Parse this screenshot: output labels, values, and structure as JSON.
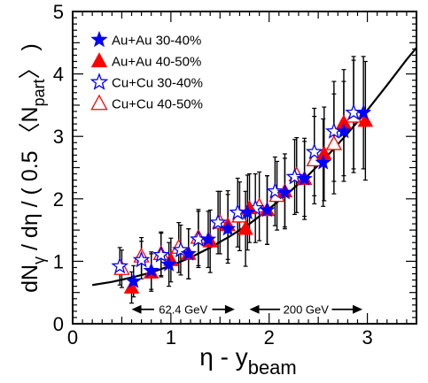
{
  "chart_data": {
    "type": "scatter",
    "xlabel": "η - y",
    "xlabel_sub": "beam",
    "ylabel": {
      "prefix": "dN",
      "gamma": "γ",
      "mid": " / dη / ( 0.5 〈N",
      "part": "part",
      "suffix": "〉 )"
    },
    "xlim": [
      0,
      3.5
    ],
    "ylim": [
      0,
      5
    ],
    "xticks": [
      "0",
      "1",
      "2",
      "3"
    ],
    "yticks": [
      "0",
      "1",
      "2",
      "3",
      "4",
      "5"
    ],
    "legend_position": "top-left",
    "series": [
      {
        "name": "Au+Au 30-40%",
        "marker": "star",
        "filled": true,
        "color": "#0000ff",
        "points": [
          {
            "x": 0.62,
            "y": 0.68,
            "err": 0.25
          },
          {
            "x": 0.8,
            "y": 0.85,
            "err": 0.3
          },
          {
            "x": 0.98,
            "y": 0.95,
            "err": 0.35
          },
          {
            "x": 1.18,
            "y": 1.12,
            "err": 0.4
          },
          {
            "x": 1.38,
            "y": 1.35,
            "err": 0.45
          },
          {
            "x": 1.58,
            "y": 1.52,
            "err": 0.55
          },
          {
            "x": 1.78,
            "y": 1.78,
            "err": 0.6
          },
          {
            "x": 1.98,
            "y": 1.82,
            "err": 0.55
          },
          {
            "x": 2.16,
            "y": 2.1,
            "err": 0.55
          },
          {
            "x": 2.36,
            "y": 2.32,
            "err": 0.6
          },
          {
            "x": 2.55,
            "y": 2.58,
            "err": 0.7
          },
          {
            "x": 2.76,
            "y": 3.08,
            "err": 0.8
          },
          {
            "x": 2.96,
            "y": 3.38,
            "err": 0.9
          }
        ]
      },
      {
        "name": "Au+Au 40-50%",
        "marker": "triangle",
        "filled": true,
        "color": "#ff0000",
        "points": [
          {
            "x": 0.6,
            "y": 0.58,
            "err": 0.25
          },
          {
            "x": 0.8,
            "y": 0.82,
            "err": 0.3
          },
          {
            "x": 1.0,
            "y": 1.02,
            "err": 0.35
          },
          {
            "x": 1.18,
            "y": 1.12,
            "err": 0.4
          },
          {
            "x": 1.4,
            "y": 1.32,
            "err": 0.5
          },
          {
            "x": 1.58,
            "y": 1.58,
            "err": 0.55
          },
          {
            "x": 1.76,
            "y": 1.52,
            "err": 0.6
          },
          {
            "x": 1.8,
            "y": 1.85,
            "err": 0.55
          },
          {
            "x": 1.98,
            "y": 1.82,
            "err": 0.55
          },
          {
            "x": 2.16,
            "y": 2.12,
            "err": 0.6
          },
          {
            "x": 2.36,
            "y": 2.32,
            "err": 0.65
          },
          {
            "x": 2.56,
            "y": 2.72,
            "err": 0.75
          },
          {
            "x": 2.76,
            "y": 3.22,
            "err": 0.85
          },
          {
            "x": 2.98,
            "y": 3.25,
            "err": 0.95
          }
        ]
      },
      {
        "name": "Cu+Cu 30-40%",
        "marker": "star",
        "filled": false,
        "color": "#0000ff",
        "points": [
          {
            "x": 0.48,
            "y": 0.92,
            "err": 0.3
          },
          {
            "x": 0.7,
            "y": 1.02,
            "err": 0.3
          },
          {
            "x": 0.9,
            "y": 1.1,
            "err": 0.35
          },
          {
            "x": 1.1,
            "y": 1.18,
            "err": 0.4
          },
          {
            "x": 1.28,
            "y": 1.35,
            "err": 0.45
          },
          {
            "x": 1.48,
            "y": 1.62,
            "err": 0.5
          },
          {
            "x": 1.68,
            "y": 1.78,
            "err": 0.55
          },
          {
            "x": 1.86,
            "y": 1.85,
            "err": 0.55
          },
          {
            "x": 2.06,
            "y": 2.12,
            "err": 0.55
          },
          {
            "x": 2.26,
            "y": 2.35,
            "err": 0.6
          },
          {
            "x": 2.46,
            "y": 2.75,
            "err": 0.7
          },
          {
            "x": 2.66,
            "y": 3.08,
            "err": 0.8
          },
          {
            "x": 2.86,
            "y": 3.38,
            "err": 0.9
          }
        ]
      },
      {
        "name": "Cu+Cu 40-50%",
        "marker": "triangle",
        "filled": false,
        "color": "#ff0000",
        "points": [
          {
            "x": 0.5,
            "y": 0.88,
            "err": 0.3
          },
          {
            "x": 0.7,
            "y": 1.08,
            "err": 0.3
          },
          {
            "x": 0.9,
            "y": 1.12,
            "err": 0.35
          },
          {
            "x": 1.08,
            "y": 1.22,
            "err": 0.4
          },
          {
            "x": 1.28,
            "y": 1.38,
            "err": 0.45
          },
          {
            "x": 1.5,
            "y": 1.62,
            "err": 0.5
          },
          {
            "x": 1.7,
            "y": 1.72,
            "err": 0.55
          },
          {
            "x": 1.9,
            "y": 1.88,
            "err": 0.55
          },
          {
            "x": 2.08,
            "y": 2.05,
            "err": 0.55
          },
          {
            "x": 2.28,
            "y": 2.38,
            "err": 0.6
          },
          {
            "x": 2.46,
            "y": 2.62,
            "err": 0.7
          },
          {
            "x": 2.66,
            "y": 2.88,
            "err": 0.8
          },
          {
            "x": 2.86,
            "y": 3.32,
            "err": 0.9
          }
        ]
      }
    ],
    "curve": {
      "x": [
        0.2,
        0.4,
        0.6,
        0.8,
        1.0,
        1.2,
        1.4,
        1.6,
        1.8,
        2.0,
        2.2,
        2.4,
        2.6,
        2.8,
        3.0,
        3.2,
        3.4,
        3.5
      ],
      "y": [
        0.62,
        0.67,
        0.74,
        0.82,
        0.93,
        1.06,
        1.22,
        1.4,
        1.6,
        1.84,
        2.1,
        2.38,
        2.7,
        3.05,
        3.42,
        3.82,
        4.23,
        4.42
      ]
    },
    "annotations": [
      {
        "text": "62.4 GeV",
        "x_from": 0.6,
        "x_to": 1.65,
        "y": 0.23
      },
      {
        "text": "200 GeV",
        "x_from": 1.8,
        "x_to": 2.95,
        "y": 0.23
      }
    ]
  }
}
